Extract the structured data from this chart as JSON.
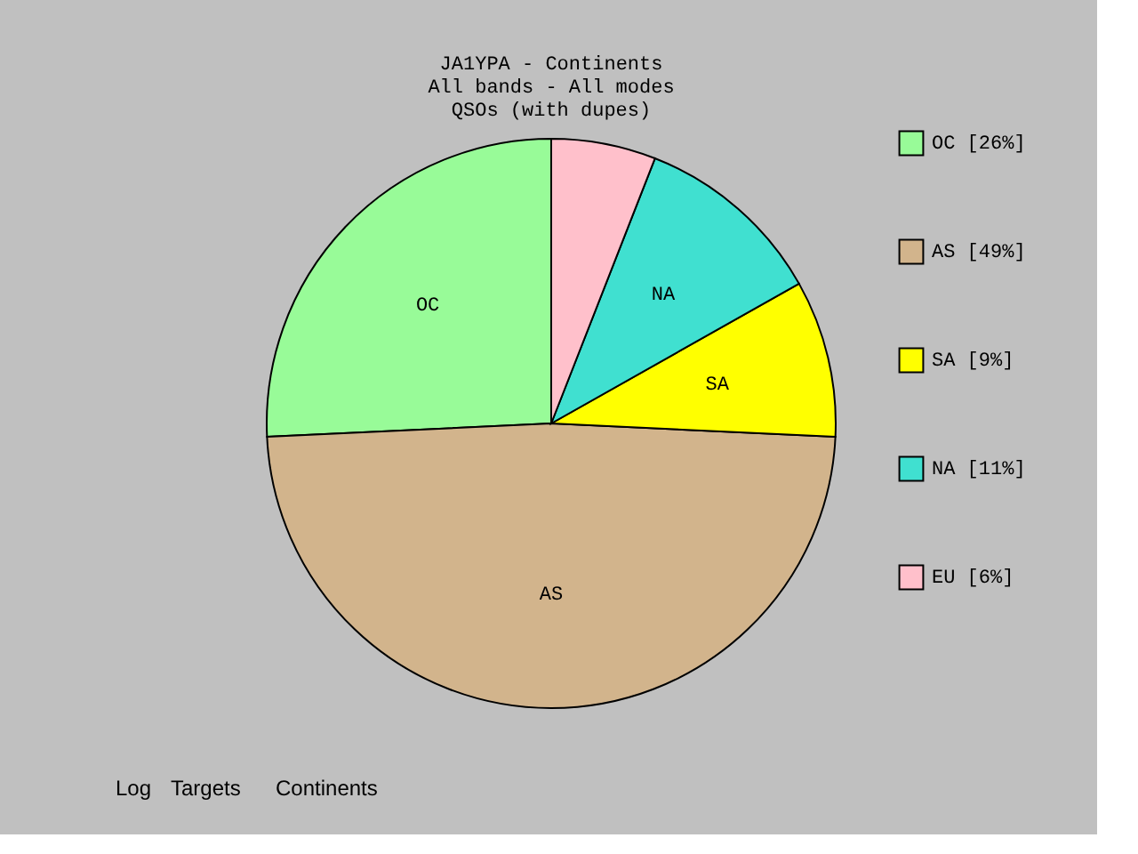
{
  "chart_data": {
    "type": "pie",
    "title": "JA1YPA - Continents",
    "subtitle": "All bands - All modes\nQSOs (with dupes)",
    "categories": [
      "OC [26%]",
      "AS [49%]",
      "SA [9%]",
      "NA [11%]",
      "EU [6%]"
    ],
    "values": [
      26,
      49,
      9,
      11,
      6
    ],
    "colors": [
      "#98fb98",
      "#d2b48c",
      "#ffff00",
      "#40e0d0",
      "#ffc0cb"
    ],
    "legend": "right",
    "annotations": [
      {
        "text": "OC",
        "x": "OC [26%]"
      },
      {
        "text": "AS",
        "x": "AS [49%]"
      },
      {
        "text": "SA",
        "x": "SA [9%]"
      },
      {
        "text": "NA",
        "x": "NA [11%]"
      },
      "Log",
      "Targets",
      "Continents"
    ]
  }
}
